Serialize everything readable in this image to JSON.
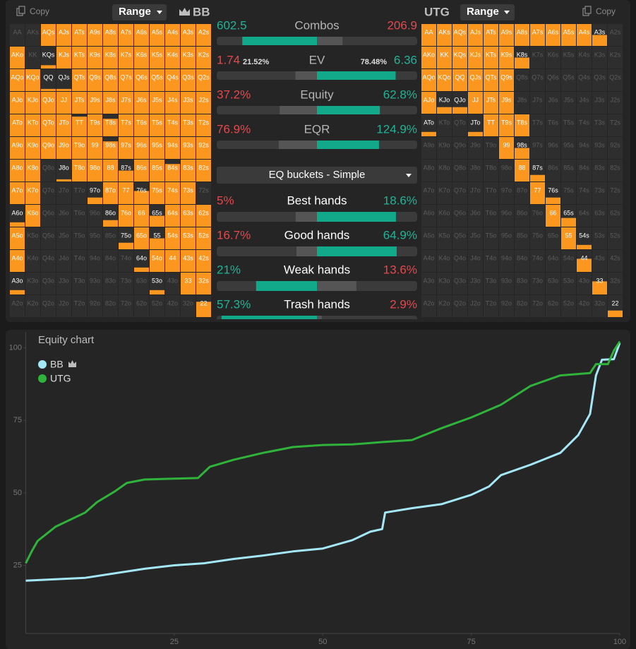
{
  "left_panel": {
    "copy": "Copy",
    "range": "Range",
    "player": "BB"
  },
  "right_panel": {
    "player": "UTG",
    "range": "Range",
    "copy": "Copy"
  },
  "hands": [
    [
      "AA",
      "AKs",
      "AQs",
      "AJs",
      "ATs",
      "A9s",
      "A8s",
      "A7s",
      "A6s",
      "A5s",
      "A4s",
      "A3s",
      "A2s"
    ],
    [
      "AKo",
      "KK",
      "KQs",
      "KJs",
      "KTs",
      "K9s",
      "K8s",
      "K7s",
      "K6s",
      "K5s",
      "K4s",
      "K3s",
      "K2s"
    ],
    [
      "AQo",
      "KQo",
      "QQ",
      "QJs",
      "QTs",
      "Q9s",
      "Q8s",
      "Q7s",
      "Q6s",
      "Q5s",
      "Q4s",
      "Q3s",
      "Q2s"
    ],
    [
      "AJo",
      "KJo",
      "QJo",
      "JJ",
      "JTs",
      "J9s",
      "J8s",
      "J7s",
      "J6s",
      "J5s",
      "J4s",
      "J3s",
      "J2s"
    ],
    [
      "ATo",
      "KTo",
      "QTo",
      "JTo",
      "TT",
      "T9s",
      "T8s",
      "T7s",
      "T6s",
      "T5s",
      "T4s",
      "T3s",
      "T2s"
    ],
    [
      "A9o",
      "K9o",
      "Q9o",
      "J9o",
      "T9o",
      "99",
      "98s",
      "97s",
      "96s",
      "95s",
      "94s",
      "93s",
      "92s"
    ],
    [
      "A8o",
      "K8o",
      "Q8o",
      "J8o",
      "T8o",
      "98o",
      "88",
      "87s",
      "86s",
      "85s",
      "84s",
      "83s",
      "82s"
    ],
    [
      "A7o",
      "K7o",
      "Q7o",
      "J7o",
      "T7o",
      "97o",
      "87o",
      "77",
      "76s",
      "75s",
      "74s",
      "73s",
      "72s"
    ],
    [
      "A6o",
      "K6o",
      "Q6o",
      "J6o",
      "T6o",
      "96o",
      "86o",
      "76o",
      "66",
      "65s",
      "64s",
      "63s",
      "62s"
    ],
    [
      "A5o",
      "K5o",
      "Q5o",
      "J5o",
      "T5o",
      "95o",
      "85o",
      "75o",
      "65o",
      "55",
      "54s",
      "53s",
      "52s"
    ],
    [
      "A4o",
      "K4o",
      "Q4o",
      "J4o",
      "T4o",
      "94o",
      "84o",
      "74o",
      "64o",
      "54o",
      "44",
      "43s",
      "42s"
    ],
    [
      "A3o",
      "K3o",
      "Q3o",
      "J3o",
      "T3o",
      "93o",
      "83o",
      "73o",
      "63o",
      "53o",
      "43o",
      "33",
      "32s"
    ],
    [
      "A2o",
      "K2o",
      "Q2o",
      "J2o",
      "T2o",
      "92o",
      "82o",
      "72o",
      "62o",
      "52o",
      "42o",
      "32o",
      "22"
    ]
  ],
  "bb_range": [
    [
      0,
      0,
      1,
      1,
      1,
      1,
      1,
      1,
      1,
      1,
      1,
      1,
      1
    ],
    [
      1,
      0,
      0.15,
      1,
      1,
      1,
      1,
      1,
      1,
      1,
      1,
      1,
      1
    ],
    [
      1,
      1,
      0.1,
      0.1,
      1,
      1,
      1,
      1,
      1,
      1,
      1,
      1,
      1
    ],
    [
      1,
      1,
      1,
      1,
      1,
      1,
      1,
      1,
      1,
      1,
      1,
      1,
      1
    ],
    [
      1,
      1,
      1,
      1,
      0.9,
      1,
      0.8,
      1,
      1,
      1,
      1,
      1,
      1
    ],
    [
      1,
      1,
      1,
      1,
      1,
      1,
      0.8,
      1,
      1,
      1,
      1,
      1,
      1
    ],
    [
      1,
      1,
      0,
      0.1,
      1,
      1,
      1,
      0.5,
      1,
      1,
      0.8,
      1,
      1
    ],
    [
      1,
      1,
      0,
      0,
      0,
      0.3,
      1,
      1,
      0.6,
      1,
      1,
      1,
      0
    ],
    [
      0.2,
      1,
      0,
      0,
      0,
      0,
      0.3,
      1,
      1,
      0.5,
      1,
      1,
      1
    ],
    [
      1,
      0,
      0,
      0,
      0,
      0,
      0,
      0.3,
      1,
      0.5,
      1,
      1,
      1
    ],
    [
      1,
      0,
      0,
      0,
      0,
      0,
      0,
      0,
      0.2,
      1,
      1,
      1,
      1
    ],
    [
      0.2,
      0,
      0,
      0,
      0,
      0,
      0,
      0,
      0,
      0.2,
      0,
      1,
      1
    ],
    [
      0,
      0,
      0,
      0,
      0,
      0,
      0,
      0,
      0,
      0,
      0,
      0,
      0.7
    ]
  ],
  "utg_range": [
    [
      1,
      1,
      1,
      1,
      1,
      1,
      1,
      1,
      1,
      1,
      1,
      0.5,
      0
    ],
    [
      1,
      1,
      1,
      1,
      1,
      1,
      0.5,
      0,
      0,
      0,
      0,
      0,
      0
    ],
    [
      1,
      1,
      1,
      1,
      1,
      1,
      0,
      0,
      0,
      0,
      0,
      0,
      0
    ],
    [
      1,
      0.3,
      0.3,
      1,
      1,
      1,
      0,
      0,
      0,
      0,
      0,
      0,
      0
    ],
    [
      0.2,
      0,
      0,
      0.2,
      1,
      1,
      1,
      0,
      0,
      0,
      0,
      0,
      0
    ],
    [
      0,
      0,
      0,
      0,
      0,
      1,
      0.5,
      0,
      0,
      0,
      0,
      0,
      0
    ],
    [
      0,
      0,
      0,
      0,
      0,
      0,
      1,
      0.3,
      0,
      0,
      0,
      0,
      0
    ],
    [
      0,
      0,
      0,
      0,
      0,
      0,
      0,
      1,
      0.3,
      0,
      0,
      0,
      0
    ],
    [
      0,
      0,
      0,
      0,
      0,
      0,
      0,
      0,
      1,
      0.4,
      0,
      0,
      0
    ],
    [
      0,
      0,
      0,
      0,
      0,
      0,
      0,
      0,
      0,
      1,
      0.2,
      0,
      0
    ],
    [
      0,
      0,
      0,
      0,
      0,
      0,
      0,
      0,
      0,
      0,
      0.6,
      0,
      0
    ],
    [
      0,
      0,
      0,
      0,
      0,
      0,
      0,
      0,
      0,
      0,
      0,
      0.6,
      0
    ],
    [
      0,
      0,
      0,
      0,
      0,
      0,
      0,
      0,
      0,
      0,
      0,
      0,
      0.3
    ]
  ],
  "stats": [
    {
      "label": "Combos",
      "bb": 602.5,
      "utg": 206.9
    },
    {
      "label": "EV",
      "bb": 1.74,
      "utg": 6.36,
      "bb_note": "21.52%",
      "utg_note": "78.48%"
    },
    {
      "label": "Equity",
      "bb": 37.2,
      "utg": 62.8,
      "bb_label": "37.2%",
      "utg_label": "62.8%"
    },
    {
      "label": "EQR",
      "bb": 76.9,
      "utg": 124.9,
      "bb_label": "76.9%",
      "utg_label": "124.9%"
    }
  ],
  "dropdown": "EQ buckets - Simple",
  "buckets": [
    {
      "label": "Best hands",
      "bb": 5,
      "utg": 18.6,
      "bb_label": "5%",
      "utg_label": "18.6%"
    },
    {
      "label": "Good hands",
      "bb": 16.7,
      "utg": 64.9,
      "bb_label": "16.7%",
      "utg_label": "64.9%"
    },
    {
      "label": "Weak hands",
      "bb": 21,
      "utg": 13.6,
      "bb_label": "21%",
      "utg_label": "13.6%"
    },
    {
      "label": "Trash hands",
      "bb": 57.3,
      "utg": 2.9,
      "bb_label": "57.3%",
      "utg_label": "2.9%"
    }
  ],
  "chart_data": {
    "type": "line",
    "title": "Equity chart",
    "xlim": [
      0,
      100
    ],
    "xticks": [
      25,
      50,
      75,
      100
    ],
    "ylim": [
      1.5,
      105.5
    ],
    "yticks": [
      25,
      50,
      75,
      100
    ],
    "series": [
      {
        "name": "BB",
        "color": "#a4e8f7",
        "x": [
          0,
          10,
          20,
          25,
          30,
          35,
          40,
          45,
          50,
          55,
          58,
          60,
          60.5,
          65,
          70,
          75,
          78,
          80,
          85,
          90,
          93,
          95,
          96,
          97,
          99,
          100
        ],
        "values": [
          19.7,
          20.7,
          23.8,
          25,
          25.7,
          27.2,
          28.4,
          29.8,
          30.8,
          33.7,
          36.6,
          37.5,
          43.2,
          44.7,
          46.1,
          49.3,
          52.2,
          56.1,
          59.7,
          63.8,
          69.9,
          77.2,
          90.5,
          95.9,
          96.1,
          101.7
        ]
      },
      {
        "name": "UTG",
        "color": "#2fb33a",
        "x": [
          0,
          1,
          2,
          5,
          10,
          12,
          15,
          17,
          20,
          25,
          29,
          31,
          35,
          40,
          45,
          50,
          55,
          60,
          65,
          70,
          75,
          80,
          85,
          90,
          95,
          96,
          98,
          99,
          100
        ],
        "values": [
          25.7,
          29.8,
          33.4,
          38.3,
          43.2,
          46.8,
          50.5,
          53.4,
          54.6,
          54.9,
          55.1,
          59,
          61.4,
          63.8,
          65.8,
          66.5,
          66.7,
          67.5,
          68.2,
          72.3,
          76,
          80.4,
          86.9,
          90.5,
          91.3,
          94.4,
          94.4,
          99,
          102.2
        ]
      }
    ]
  }
}
